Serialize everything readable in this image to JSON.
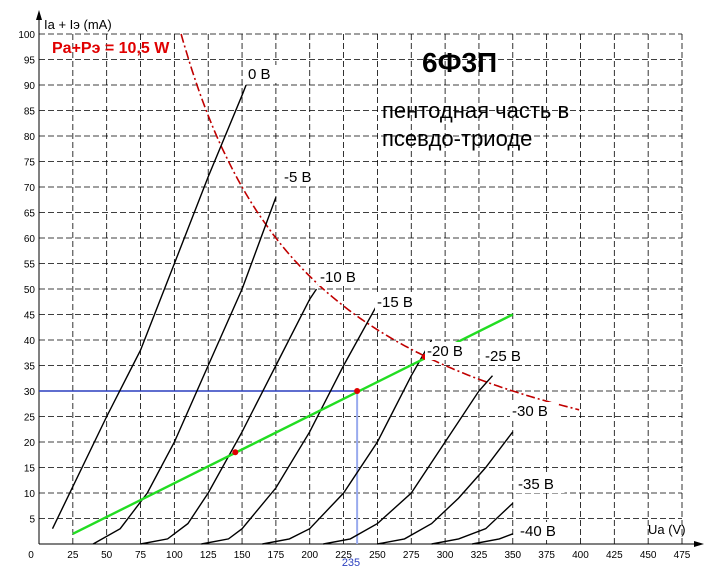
{
  "chart_data": {
    "type": "line",
    "title": "6Ф3П",
    "subtitle_lines": [
      "пентодная часть в",
      "псевдо-триоде"
    ],
    "xlabel": "Ua (V)",
    "ylabel": "Ia + Iэ (mA)",
    "xlim": [
      0,
      475
    ],
    "ylim": [
      0,
      100
    ],
    "x_ticks": [
      0,
      25,
      50,
      75,
      100,
      125,
      150,
      175,
      200,
      225,
      250,
      275,
      300,
      325,
      350,
      375,
      400,
      425,
      450,
      475
    ],
    "y_ticks": [
      5,
      10,
      15,
      20,
      25,
      30,
      35,
      40,
      45,
      50,
      55,
      60,
      65,
      70,
      75,
      80,
      85,
      90,
      95,
      100
    ],
    "grid": true,
    "colors": {
      "curves": "#000000",
      "power_curve": "#c00000",
      "power_label": "#e00000",
      "load_line": "#22dd22",
      "operating_point_h": "#2a3fbf",
      "operating_point_v": "#99aaee",
      "points": "#e00000",
      "marker_label": "#2a3fbf"
    },
    "series": [
      {
        "name": "0 В",
        "points": [
          [
            10,
            3
          ],
          [
            50,
            25
          ],
          [
            75,
            38
          ],
          [
            100,
            55
          ],
          [
            125,
            72
          ],
          [
            150,
            88
          ],
          [
            153,
            90
          ]
        ]
      },
      {
        "name": "-5 В",
        "points": [
          [
            40,
            0
          ],
          [
            60,
            3
          ],
          [
            80,
            10
          ],
          [
            100,
            20
          ],
          [
            125,
            35
          ],
          [
            150,
            50
          ],
          [
            175,
            68
          ]
        ]
      },
      {
        "name": "-10 В",
        "points": [
          [
            75,
            0
          ],
          [
            95,
            1
          ],
          [
            110,
            4
          ],
          [
            125,
            10
          ],
          [
            150,
            22
          ],
          [
            175,
            35
          ],
          [
            200,
            48
          ],
          [
            205,
            50
          ]
        ]
      },
      {
        "name": "-15 В",
        "points": [
          [
            120,
            0
          ],
          [
            140,
            1
          ],
          [
            150,
            3
          ],
          [
            175,
            11
          ],
          [
            200,
            22
          ],
          [
            225,
            35
          ],
          [
            250,
            47
          ]
        ]
      },
      {
        "name": "-20 В",
        "points": [
          [
            165,
            0
          ],
          [
            185,
            1
          ],
          [
            200,
            3
          ],
          [
            225,
            10
          ],
          [
            250,
            20
          ],
          [
            275,
            33
          ],
          [
            290,
            40
          ]
        ]
      },
      {
        "name": "-25 В",
        "points": [
          [
            210,
            0
          ],
          [
            230,
            1
          ],
          [
            250,
            4
          ],
          [
            275,
            10
          ],
          [
            300,
            20
          ],
          [
            325,
            30
          ],
          [
            335,
            33
          ]
        ]
      },
      {
        "name": "-30 В",
        "points": [
          [
            250,
            0
          ],
          [
            270,
            1
          ],
          [
            290,
            4
          ],
          [
            310,
            9
          ],
          [
            330,
            15
          ],
          [
            350,
            22
          ]
        ]
      },
      {
        "name": "-35 В",
        "points": [
          [
            290,
            0
          ],
          [
            310,
            1
          ],
          [
            330,
            3
          ],
          [
            350,
            8
          ]
        ]
      },
      {
        "name": "-40 В",
        "points": [
          [
            320,
            0
          ],
          [
            340,
            1
          ],
          [
            350,
            2
          ]
        ]
      }
    ],
    "power_curve": {
      "name": "Pa+Pэ = 10,5 W",
      "power_w": 10.5,
      "x_range": [
        105,
        400
      ]
    },
    "load_line": {
      "points": [
        [
          25,
          2
        ],
        [
          350,
          45
        ]
      ]
    },
    "operating_point": {
      "x": 235,
      "y": 30
    },
    "marked_points": [
      [
        145,
        18
      ],
      [
        235,
        30
      ],
      [
        285,
        36.7
      ]
    ]
  }
}
